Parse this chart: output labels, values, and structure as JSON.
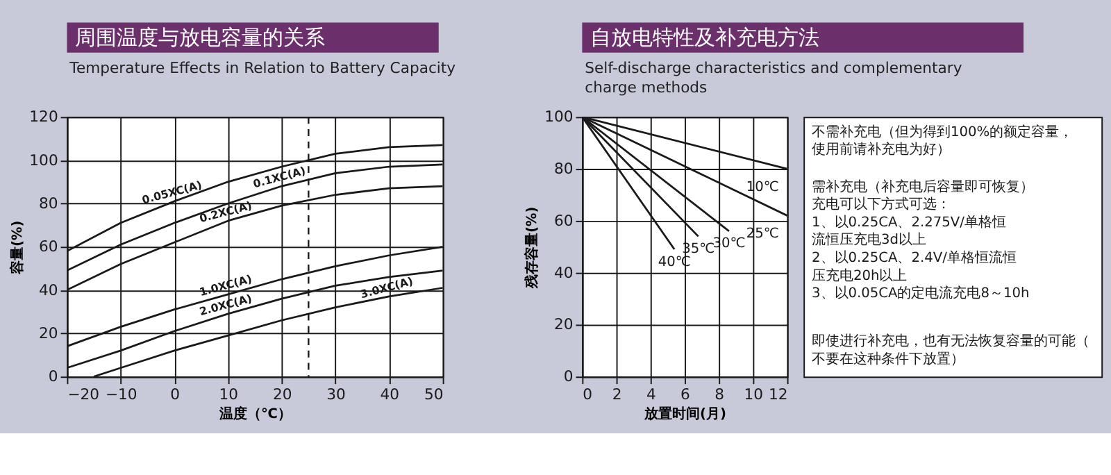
{
  "chart_data": [
    {
      "type": "line",
      "title": "周围温度与放电容量的关系",
      "subtitle": "Temperature Effects in Relation to Battery Capacity",
      "xlabel": "温度（℃）",
      "ylabel": "容量(%)",
      "x": [
        -20,
        -10,
        0,
        10,
        20,
        30,
        40,
        50
      ],
      "xlim": [
        -20,
        50
      ],
      "xticks": [
        -20,
        -10,
        0,
        10,
        20,
        30,
        40,
        50
      ],
      "ylim": [
        0,
        120
      ],
      "yticks": [
        0,
        20,
        40,
        60,
        80,
        100,
        120
      ],
      "grid": true,
      "legend": false,
      "marker": "none",
      "line_style": "solid",
      "series": [
        {
          "name": "0.05XC(A)",
          "color": "#1a1a1a",
          "values": [
            58,
            71,
            81,
            90,
            97,
            103,
            106,
            107
          ]
        },
        {
          "name": "0.1XC(A)",
          "color": "#1a1a1a",
          "values": [
            49,
            61,
            71,
            80,
            88,
            94,
            97,
            98
          ]
        },
        {
          "name": "0.2XC(A)",
          "color": "#1a1a1a",
          "values": [
            40,
            52,
            62,
            72,
            79,
            84,
            87,
            88
          ]
        },
        {
          "name": "1.0XC(A)",
          "color": "#1a1a1a",
          "values": [
            14,
            23,
            31,
            38,
            45,
            51,
            56,
            60
          ]
        },
        {
          "name": "2.0XC(A)",
          "color": "#1a1a1a",
          "values": [
            4,
            12,
            21,
            29,
            36,
            42,
            46,
            49
          ]
        },
        {
          "name": "3.0XC(A)",
          "color": "#1a1a1a",
          "x": [
            -15,
            -10,
            0,
            10,
            20,
            30,
            40,
            50
          ],
          "values": [
            0,
            4,
            12,
            19,
            26,
            32,
            37,
            41
          ]
        }
      ],
      "ref_lines": [
        {
          "axis": "x",
          "value": 25,
          "color": "#1a1a1a",
          "line_style": "dashed"
        }
      ]
    },
    {
      "type": "line",
      "title": "自放电特性及补充电方法",
      "subtitle": "Self-discharge characteristics and complementary charge methods",
      "xlabel": "放置时间(月)",
      "ylabel": "残存容量(%)",
      "xlim": [
        0,
        12
      ],
      "xticks": [
        0,
        2,
        4,
        6,
        8,
        10,
        12
      ],
      "ylim": [
        0,
        100
      ],
      "yticks": [
        0,
        20,
        40,
        60,
        80,
        100
      ],
      "grid": true,
      "legend": false,
      "marker": "none",
      "line_style": "solid",
      "series": [
        {
          "name": "10℃",
          "color": "#1a1a1a",
          "x": [
            0,
            12
          ],
          "values": [
            100,
            80
          ]
        },
        {
          "name": "25℃",
          "color": "#1a1a1a",
          "x": [
            0,
            12
          ],
          "values": [
            100,
            62
          ]
        },
        {
          "name": "30℃",
          "color": "#1a1a1a",
          "x": [
            0,
            8.6
          ],
          "values": [
            100,
            56
          ]
        },
        {
          "name": "35℃",
          "color": "#1a1a1a",
          "x": [
            0,
            6.8
          ],
          "values": [
            100,
            54
          ]
        },
        {
          "name": "40℃",
          "color": "#1a1a1a",
          "x": [
            0,
            5.4
          ],
          "values": [
            100,
            49
          ]
        }
      ],
      "annotations": [
        "不需补充电（但为得到100%的额定容量，使用前请补充电为好）",
        "需补充电（补充电后容量即可恢复）",
        "充电可以下方式可选：",
        "1、以0.25CA、2.275V/单格恒流恒压充电3d以上",
        "2、以0.25CA、2.4V/单格恒流恒压充电20h以上",
        "3、以0.05CA的定电流充电8～10h",
        "即使进行补充电，也有无法恢复容量的可能（不要在这种条件下放置）"
      ]
    }
  ]
}
